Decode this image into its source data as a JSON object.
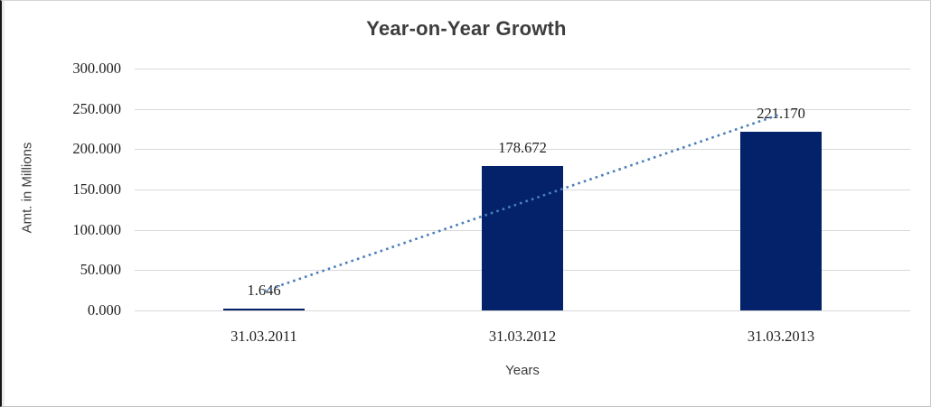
{
  "chart_data": {
    "type": "bar",
    "title": "Year-on-Year Growth",
    "xlabel": "Years",
    "ylabel": "Amt. in Millions",
    "categories": [
      "31.03.2011",
      "31.03.2012",
      "31.03.2013"
    ],
    "values": [
      1.646,
      178.672,
      221.17
    ],
    "data_labels": [
      "1.646",
      "178.672",
      "221.170"
    ],
    "y_ticks": [
      "300.000",
      "250.000",
      "200.000",
      "150.000",
      "100.000",
      "50.000",
      "0.000"
    ],
    "ylim": [
      0,
      300
    ],
    "grid": true,
    "legend": "none",
    "trendline": {
      "type": "linear",
      "style": "dotted-square"
    },
    "colors": {
      "bar": "#042269",
      "trendline": "#4a7ebb",
      "gridline": "#d9d9d9",
      "title_text": "#3d3d3d",
      "label_text": "#1f1f1f"
    }
  }
}
